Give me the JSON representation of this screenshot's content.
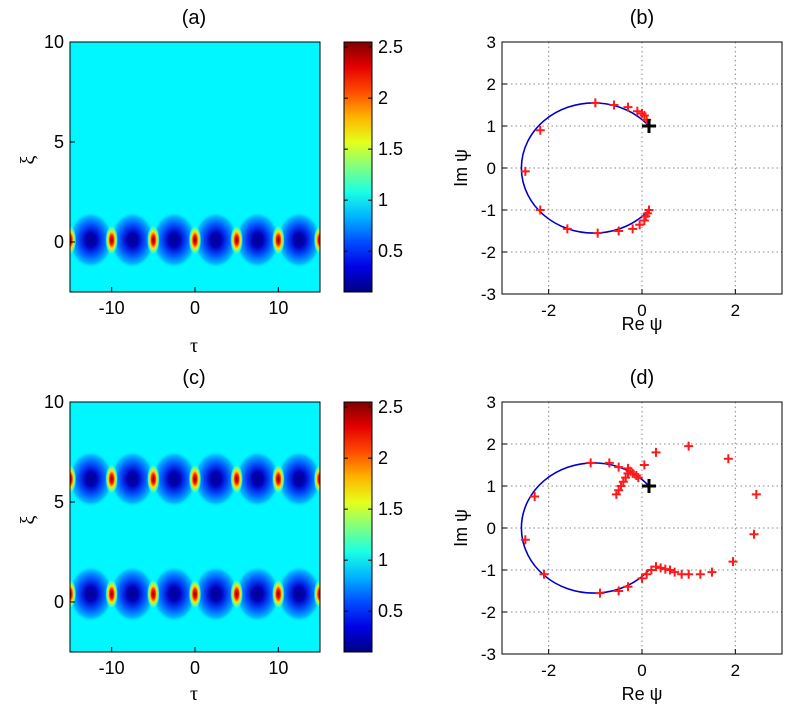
{
  "chart_data": [
    {
      "id": "a",
      "type": "heatmap",
      "title": "(a)",
      "xlabel": "τ",
      "ylabel": "ξ",
      "xlim": [
        -15,
        15
      ],
      "ylim": [
        -2.5,
        10
      ],
      "xticks": [
        -10,
        0,
        10
      ],
      "yticks": [
        0,
        5,
        10
      ],
      "colorbar": {
        "range": [
          0.1,
          2.55
        ],
        "ticks": [
          0.5,
          1,
          1.5,
          2,
          2.5
        ]
      },
      "background_value": 1.0,
      "peak_rows_xi": [
        0.1
      ],
      "peak_tau": [
        -15,
        -10,
        -5,
        0,
        5,
        10,
        15
      ],
      "peak_value": 2.55,
      "trough_value": 0.1
    },
    {
      "id": "b",
      "type": "scatter",
      "title": "(b)",
      "xlabel": "Re ψ",
      "ylabel": "Im ψ",
      "xlim": [
        -3,
        3
      ],
      "ylim": [
        -3,
        3
      ],
      "xticks": [
        -2,
        0,
        2
      ],
      "yticks": [
        -3,
        -2,
        -1,
        0,
        1,
        2,
        3
      ],
      "grid": true,
      "curve": {
        "color": "#0000cc",
        "center": [
          -1,
          0
        ],
        "radius": 1.55,
        "from_point": [
          0.15,
          1.0
        ],
        "to_point": [
          0.15,
          -1.0
        ]
      },
      "points": [
        [
          -2.5,
          -0.08
        ],
        [
          -2.18,
          0.9
        ],
        [
          -2.18,
          -1.0
        ],
        [
          -1.6,
          -1.45
        ],
        [
          -1.0,
          1.55
        ],
        [
          -0.95,
          -1.55
        ],
        [
          -0.6,
          1.5
        ],
        [
          -0.5,
          -1.5
        ],
        [
          -0.3,
          1.45
        ],
        [
          -0.2,
          -1.45
        ],
        [
          -0.1,
          1.35
        ],
        [
          -0.05,
          -1.35
        ],
        [
          0.0,
          1.3
        ],
        [
          0.05,
          -1.25
        ],
        [
          0.05,
          1.25
        ],
        [
          0.08,
          -1.15
        ],
        [
          0.1,
          1.15
        ],
        [
          0.12,
          -1.08
        ],
        [
          0.15,
          -1.0
        ]
      ],
      "start_point": [
        0.15,
        1.0
      ]
    },
    {
      "id": "c",
      "type": "heatmap",
      "title": "(c)",
      "xlabel": "τ",
      "ylabel": "ξ",
      "xlim": [
        -15,
        15
      ],
      "ylim": [
        -2.5,
        10
      ],
      "xticks": [
        -10,
        0,
        10
      ],
      "yticks": [
        0,
        5,
        10
      ],
      "colorbar": {
        "range": [
          0.1,
          2.55
        ],
        "ticks": [
          0.5,
          1,
          1.5,
          2,
          2.5
        ]
      },
      "background_value": 1.0,
      "peak_rows_xi": [
        0.4,
        6.15
      ],
      "peak_tau": [
        -15,
        -10,
        -5,
        0,
        5,
        10,
        15
      ],
      "peak_value": 2.55,
      "trough_value": 0.1
    },
    {
      "id": "d",
      "type": "scatter",
      "title": "(d)",
      "xlabel": "Re ψ",
      "ylabel": "Im ψ",
      "xlim": [
        -3,
        3
      ],
      "ylim": [
        -3,
        3
      ],
      "xticks": [
        -2,
        0,
        2
      ],
      "yticks": [
        -3,
        -2,
        -1,
        0,
        1,
        2,
        3
      ],
      "grid": true,
      "curve": {
        "color": "#0000cc",
        "center": [
          -1,
          0
        ],
        "radius": 1.55,
        "from_point": [
          0.15,
          1.0
        ],
        "to_point": [
          0.15,
          -1.0
        ]
      },
      "points": [
        [
          -2.5,
          -0.28
        ],
        [
          -2.3,
          0.75
        ],
        [
          -2.1,
          -1.1
        ],
        [
          -1.1,
          1.55
        ],
        [
          -0.9,
          -1.55
        ],
        [
          -0.7,
          1.55
        ],
        [
          -0.5,
          1.45
        ],
        [
          -0.3,
          1.42
        ],
        [
          -0.55,
          0.8
        ],
        [
          -0.5,
          0.9
        ],
        [
          -0.45,
          1.0
        ],
        [
          -0.4,
          1.1
        ],
        [
          -0.35,
          1.2
        ],
        [
          -0.3,
          1.3
        ],
        [
          -0.25,
          1.35
        ],
        [
          -0.2,
          1.3
        ],
        [
          -0.12,
          1.25
        ],
        [
          -0.08,
          1.2
        ],
        [
          0.05,
          1.5
        ],
        [
          0.3,
          1.8
        ],
        [
          1.0,
          1.95
        ],
        [
          1.85,
          1.65
        ],
        [
          2.45,
          0.8
        ],
        [
          2.4,
          -0.15
        ],
        [
          1.95,
          -0.8
        ],
        [
          1.5,
          -1.05
        ],
        [
          1.25,
          -1.1
        ],
        [
          1.0,
          -1.1
        ],
        [
          0.85,
          -1.1
        ],
        [
          0.7,
          -1.05
        ],
        [
          0.6,
          -1.0
        ],
        [
          0.5,
          -0.98
        ],
        [
          0.4,
          -0.95
        ],
        [
          0.3,
          -0.92
        ],
        [
          0.2,
          -1.0
        ],
        [
          0.1,
          -1.1
        ],
        [
          0.0,
          -1.2
        ],
        [
          -0.3,
          -1.4
        ],
        [
          -0.5,
          -1.5
        ]
      ],
      "start_point": [
        0.15,
        1.0
      ]
    }
  ]
}
